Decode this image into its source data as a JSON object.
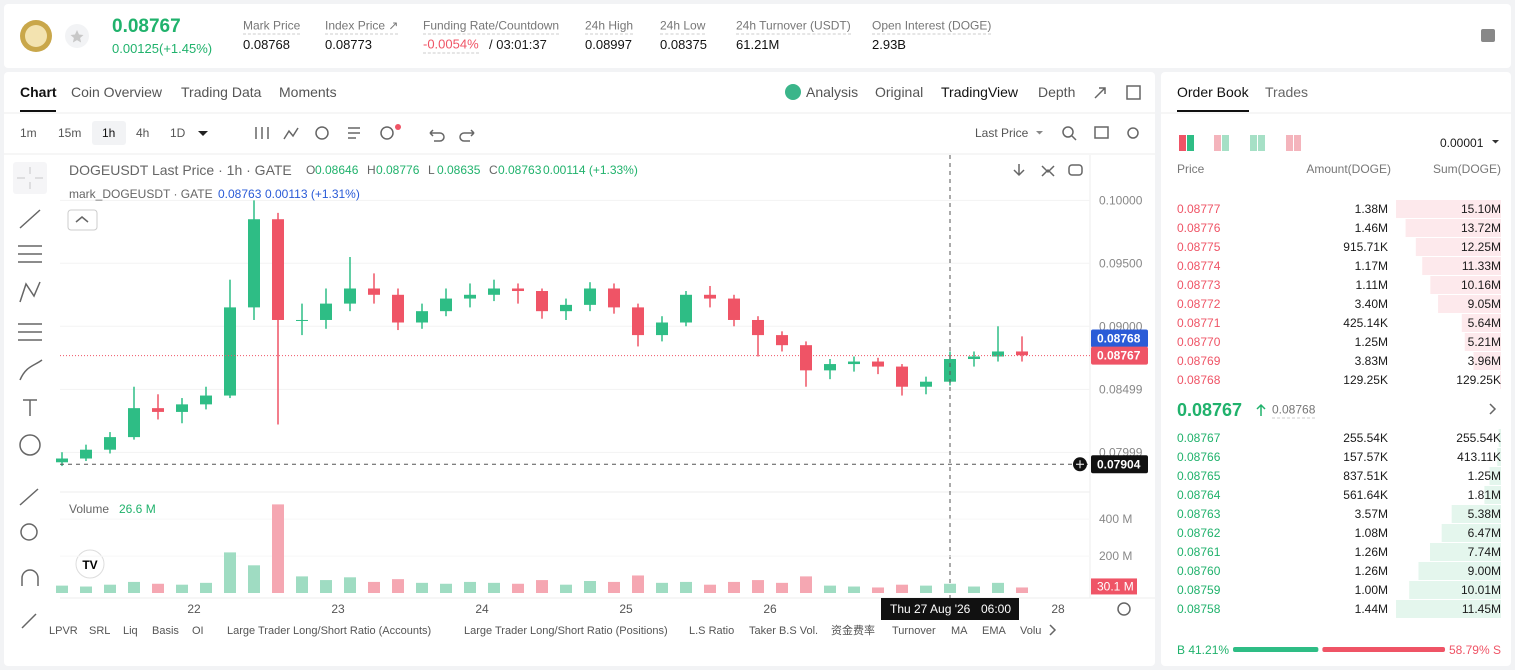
{
  "header": {
    "price": "0.08767",
    "change": "0.00125(+1.45%)",
    "stats": [
      {
        "label": "Mark Price",
        "value": "0.08768"
      },
      {
        "label": "Index Price ↗",
        "value": "0.08773"
      },
      {
        "label": "Funding Rate/Countdown",
        "value": "-0.0054%",
        "extra": "/ 03:01:37"
      },
      {
        "label": "24h High",
        "value": "0.08997"
      },
      {
        "label": "24h Low",
        "value": "0.08375"
      },
      {
        "label": "24h Turnover (USDT)",
        "value": "61.21M"
      },
      {
        "label": "Open Interest (DOGE)",
        "value": "2.93B"
      }
    ]
  },
  "chart_tabs": [
    "Chart",
    "Coin Overview",
    "Trading Data",
    "Moments"
  ],
  "view_tabs": [
    "Analysis",
    "Original",
    "TradingView",
    "Depth"
  ],
  "intervals": [
    "1m",
    "15m",
    "1h",
    "4h",
    "1D"
  ],
  "price_source": "Last Price",
  "legend": {
    "title": "DOGEUSDT Last Price · 1h · GATE",
    "ohlc": [
      {
        "label": "O",
        "value": "0.08646"
      },
      {
        "label": "H",
        "value": "0.08776"
      },
      {
        "label": "L",
        "value": "0.08635"
      },
      {
        "label": "C",
        "value": "0.08763"
      }
    ],
    "change": "0.00114 (+1.33%)",
    "mark_title": "mark_DOGEUSDT · GATE",
    "mark_value": "0.08763",
    "mark_change": "0.00113 (+1.31%)"
  },
  "chart": {
    "type": "candlestick",
    "candles": [
      [
        0.0792,
        0.08,
        0.0789,
        0.0795
      ],
      [
        0.0795,
        0.0806,
        0.0793,
        0.0802
      ],
      [
        0.0802,
        0.0816,
        0.0799,
        0.0812
      ],
      [
        0.0812,
        0.0852,
        0.081,
        0.0835
      ],
      [
        0.0835,
        0.0846,
        0.0826,
        0.0832
      ],
      [
        0.0832,
        0.0843,
        0.0823,
        0.0838
      ],
      [
        0.0838,
        0.0852,
        0.0834,
        0.0845
      ],
      [
        0.0845,
        0.0937,
        0.0843,
        0.0915
      ],
      [
        0.0915,
        0.1,
        0.0905,
        0.0985
      ],
      [
        0.0985,
        0.099,
        0.0822,
        0.0905
      ],
      [
        0.0905,
        0.0918,
        0.0893,
        0.0905
      ],
      [
        0.0905,
        0.093,
        0.0898,
        0.0918
      ],
      [
        0.0918,
        0.0955,
        0.0912,
        0.093
      ],
      [
        0.093,
        0.0942,
        0.0918,
        0.0925
      ],
      [
        0.0925,
        0.093,
        0.0897,
        0.0903
      ],
      [
        0.0903,
        0.0918,
        0.0898,
        0.0912
      ],
      [
        0.0912,
        0.093,
        0.0908,
        0.0922
      ],
      [
        0.0922,
        0.0934,
        0.0915,
        0.0925
      ],
      [
        0.0925,
        0.0937,
        0.092,
        0.093
      ],
      [
        0.093,
        0.0934,
        0.0918,
        0.0928
      ],
      [
        0.0928,
        0.093,
        0.0906,
        0.0912
      ],
      [
        0.0912,
        0.0922,
        0.0905,
        0.0917
      ],
      [
        0.0917,
        0.0935,
        0.0912,
        0.093
      ],
      [
        0.093,
        0.0934,
        0.091,
        0.0915
      ],
      [
        0.0915,
        0.0918,
        0.0884,
        0.0893
      ],
      [
        0.0893,
        0.0908,
        0.0888,
        0.0903
      ],
      [
        0.0903,
        0.0928,
        0.09,
        0.0925
      ],
      [
        0.0925,
        0.0932,
        0.0915,
        0.0922
      ],
      [
        0.0922,
        0.0925,
        0.09,
        0.0905
      ],
      [
        0.0905,
        0.0908,
        0.0876,
        0.0893
      ],
      [
        0.0893,
        0.0896,
        0.088,
        0.0885
      ],
      [
        0.0885,
        0.0888,
        0.0852,
        0.0865
      ],
      [
        0.0865,
        0.0874,
        0.0858,
        0.087
      ],
      [
        0.087,
        0.0876,
        0.0864,
        0.0872
      ],
      [
        0.0872,
        0.0875,
        0.0862,
        0.0868
      ],
      [
        0.0868,
        0.087,
        0.0845,
        0.0852
      ],
      [
        0.0852,
        0.086,
        0.0846,
        0.0856
      ],
      [
        0.0856,
        0.088,
        0.0853,
        0.0874
      ],
      [
        0.0874,
        0.088,
        0.0868,
        0.0876
      ],
      [
        0.0876,
        0.09,
        0.0872,
        0.088
      ],
      [
        0.088,
        0.0892,
        0.0872,
        0.0877
      ]
    ],
    "ylim": [
      0.077,
      0.1036
    ],
    "yticks": [
      {
        "value": 0.1,
        "label": "0.10000"
      },
      {
        "value": 0.095,
        "label": "0.09500"
      },
      {
        "value": 0.09,
        "label": "0.09000"
      },
      0.08499,
      0.07999
    ],
    "x_labels": [
      "22",
      "23",
      "24",
      "25",
      "26",
      "28"
    ],
    "last_price": 0.08767,
    "mark_price": 0.08768,
    "crosshair_price": 0.07904,
    "crosshair_date": "Thu 27 Aug '26",
    "crosshair_time": "06:00",
    "volume": {
      "title": "Volume",
      "current": "26.6 M",
      "values": [
        40,
        35,
        45,
        60,
        50,
        45,
        55,
        220,
        150,
        480,
        90,
        70,
        85,
        60,
        75,
        55,
        50,
        60,
        55,
        50,
        70,
        45,
        65,
        60,
        95,
        55,
        60,
        45,
        60,
        70,
        55,
        90,
        40,
        35,
        30,
        45,
        40,
        50,
        35,
        55,
        30
      ],
      "ylim": [
        0,
        520
      ],
      "yticks": [
        {
          "value": 200,
          "label": "200 M"
        },
        {
          "value": 400,
          "label": "400 M"
        }
      ],
      "last": 30.1,
      "last_label": "30.1 M"
    }
  },
  "indicators": [
    "LPVR",
    "SRL",
    "Liq",
    "Basis",
    "OI",
    "Large Trader Long/Short Ratio (Accounts)",
    "Large Trader Long/Short Ratio (Positions)",
    "L.S Ratio",
    "Taker B.S Vol.",
    "资金费率",
    "Turnover",
    "MA",
    "EMA",
    "Volu"
  ],
  "order_book": {
    "tabs": [
      "Order Book",
      "Trades"
    ],
    "precision": "0.00001",
    "columns": [
      "Price",
      "Amount(DOGE)",
      "Sum(DOGE)"
    ],
    "asks": [
      [
        "0.08777",
        "1.38M",
        "15.10M"
      ],
      [
        "0.08776",
        "1.46M",
        "13.72M"
      ],
      [
        "0.08775",
        "915.71K",
        "12.25M"
      ],
      [
        "0.08774",
        "1.17M",
        "11.33M"
      ],
      [
        "0.08773",
        "1.11M",
        "10.16M"
      ],
      [
        "0.08772",
        "3.40M",
        "9.05M"
      ],
      [
        "0.08771",
        "425.14K",
        "5.64M"
      ],
      [
        "0.08770",
        "1.25M",
        "5.21M"
      ],
      [
        "0.08769",
        "3.83M",
        "3.96M"
      ],
      [
        "0.08768",
        "129.25K",
        "129.25K"
      ]
    ],
    "mid_price": "0.08767",
    "mark_price": "0.08768",
    "bids": [
      [
        "0.08767",
        "255.54K",
        "255.54K"
      ],
      [
        "0.08766",
        "157.57K",
        "413.11K"
      ],
      [
        "0.08765",
        "837.51K",
        "1.25M"
      ],
      [
        "0.08764",
        "561.64K",
        "1.81M"
      ],
      [
        "0.08763",
        "3.57M",
        "5.38M"
      ],
      [
        "0.08762",
        "1.08M",
        "6.47M"
      ],
      [
        "0.08761",
        "1.26M",
        "7.74M"
      ],
      [
        "0.08760",
        "1.26M",
        "9.00M"
      ],
      [
        "0.08759",
        "1.00M",
        "10.01M"
      ],
      [
        "0.08758",
        "1.44M",
        "11.45M"
      ]
    ],
    "ratio": {
      "values": [
        41.21,
        58.79
      ],
      "value_labels": [
        "B 41.21%",
        "58.79% S"
      ]
    }
  }
}
